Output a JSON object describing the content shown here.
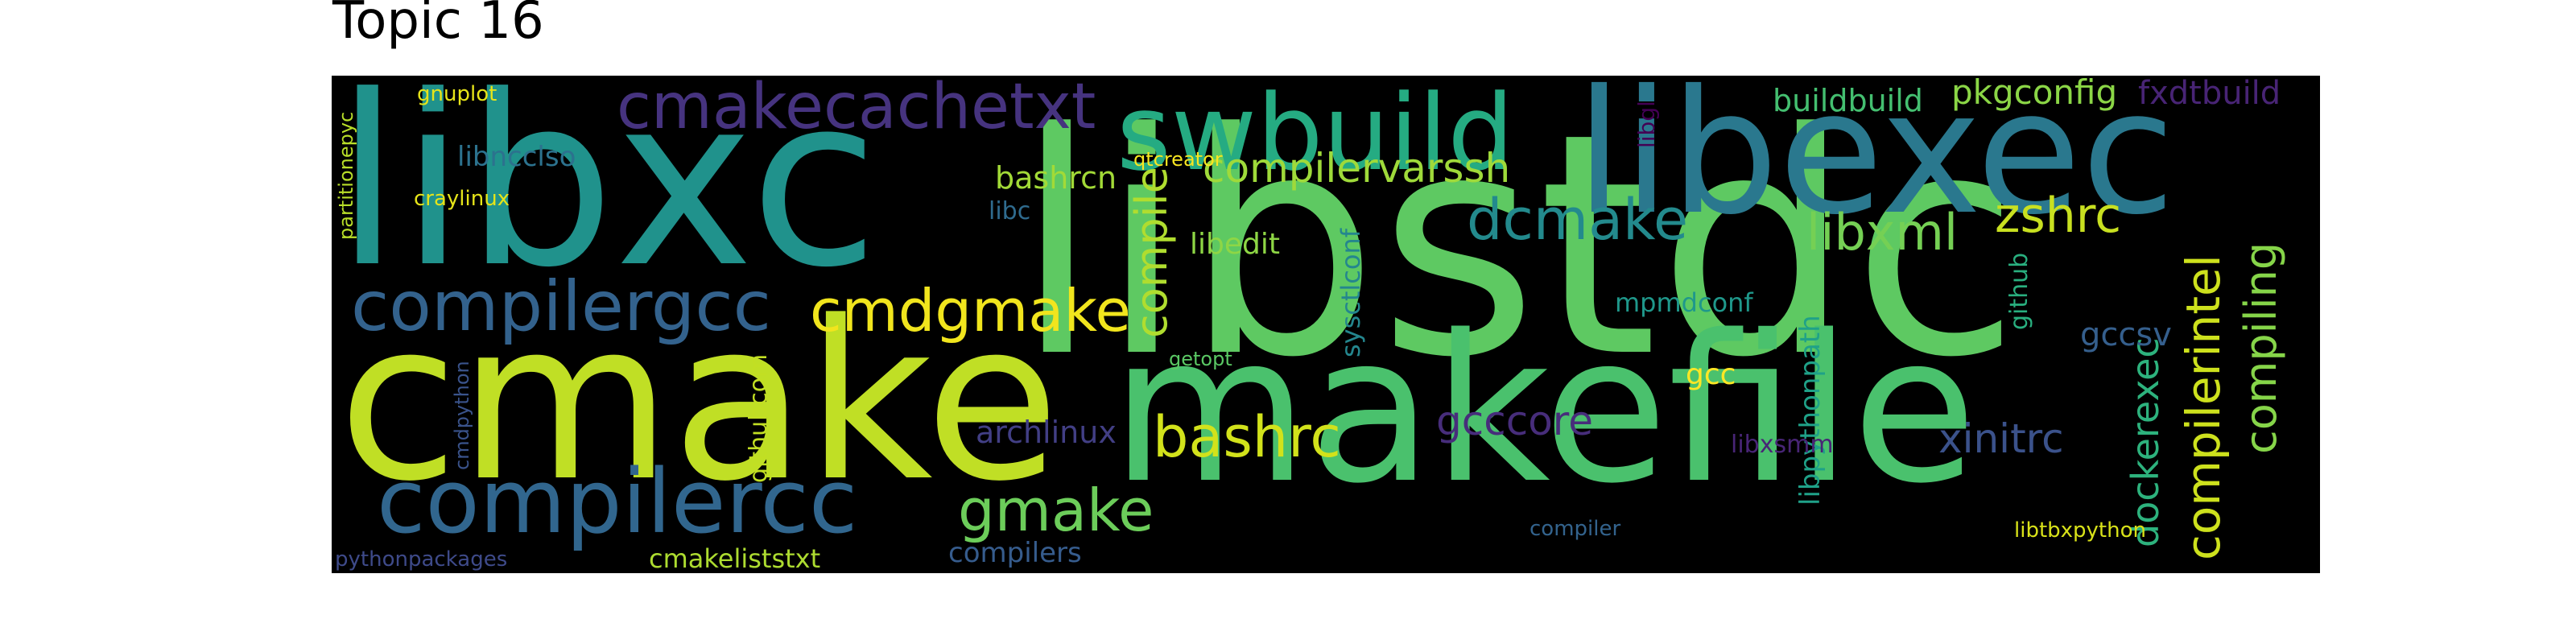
{
  "title": "Topic 16",
  "palette": {
    "yellow": "#fde725",
    "lime": "#b5de2b",
    "green": "#6ece58",
    "teal_green": "#35b779",
    "teal": "#1f9e89",
    "cyan_blue": "#26828e",
    "blue": "#31688e",
    "indigo": "#3e4989",
    "purple": "#482878",
    "dark_purple": "#440154"
  },
  "words": [
    {
      "text": "libstdc",
      "color": "#5ec962"
    },
    {
      "text": "makefile",
      "color": "#4ac16d"
    },
    {
      "text": "cmake",
      "color": "#c0df25"
    },
    {
      "text": "libxc",
      "color": "#20928c"
    },
    {
      "text": "libexec",
      "color": "#2a788e"
    },
    {
      "text": "swbuild",
      "color": "#25ab82"
    },
    {
      "text": "compilercc",
      "color": "#31668e"
    },
    {
      "text": "compilergcc",
      "color": "#33628d"
    },
    {
      "text": "cmakecachetxt",
      "color": "#46337f"
    },
    {
      "text": "cmdgmake",
      "color": "#f1e51d"
    },
    {
      "text": "gmake",
      "color": "#6ccd5a"
    },
    {
      "text": "bashrc",
      "color": "#d2e21b"
    },
    {
      "text": "dcmake",
      "color": "#238a8d"
    },
    {
      "text": "compilervarssh",
      "color": "#9fda3a"
    },
    {
      "text": "libxml",
      "color": "#75d054"
    },
    {
      "text": "zshrc",
      "color": "#c8e020"
    },
    {
      "text": "compile",
      "color": "#b0dd2f"
    },
    {
      "text": "compilerintel",
      "color": "#cde11d"
    },
    {
      "text": "compiling",
      "color": "#86d549"
    },
    {
      "text": "dockerexec",
      "color": "#2db27d"
    },
    {
      "text": "xinitrc",
      "color": "#3b528b"
    },
    {
      "text": "gcccore",
      "color": "#472d7b"
    },
    {
      "text": "archlinux",
      "color": "#423f85"
    },
    {
      "text": "compilers",
      "color": "#365c8d"
    },
    {
      "text": "cmakeliststxt",
      "color": "#addc30"
    },
    {
      "text": "pythonpackages",
      "color": "#3e4a89"
    },
    {
      "text": "libncclso",
      "color": "#2c728e"
    },
    {
      "text": "craylinux",
      "color": "#e5e419"
    },
    {
      "text": "gnuplot",
      "color": "#e7e419"
    },
    {
      "text": "partitionepyc",
      "color": "#b8de29"
    },
    {
      "text": "qtcreator",
      "color": "#f8e621"
    },
    {
      "text": "bashrcn",
      "color": "#a2da37"
    },
    {
      "text": "libc",
      "color": "#2f6b8e"
    },
    {
      "text": "libedit",
      "color": "#8ed645"
    },
    {
      "text": "getopt",
      "color": "#5ac864"
    },
    {
      "text": "githubcom",
      "color": "#c2df23"
    },
    {
      "text": "cmdpython",
      "color": "#3a538b"
    },
    {
      "text": "sysctlconf",
      "color": "#24868e"
    },
    {
      "text": "mpmdconf",
      "color": "#1f988b"
    },
    {
      "text": "libgl",
      "color": "#440154"
    },
    {
      "text": "buildbuild",
      "color": "#44bf70"
    },
    {
      "text": "pkgconfig",
      "color": "#8bd646"
    },
    {
      "text": "fxdtbuild",
      "color": "#482475"
    },
    {
      "text": "github",
      "color": "#29af7f"
    },
    {
      "text": "gcc",
      "color": "#fde725"
    },
    {
      "text": "libpythonpath",
      "color": "#1fa188"
    },
    {
      "text": "libxsmm",
      "color": "#482576"
    },
    {
      "text": "gccsv",
      "color": "#355f8d"
    },
    {
      "text": "compiler",
      "color": "#33638d"
    },
    {
      "text": "libtbxpython",
      "color": "#d8e219"
    }
  ]
}
